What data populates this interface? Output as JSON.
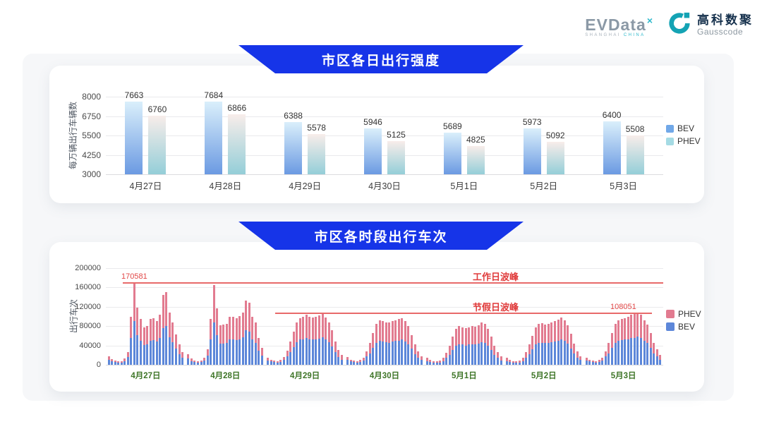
{
  "header": {
    "evdata": {
      "text": "EVData",
      "superscript": "×",
      "sub_left": "SHANGHAI",
      "sub_right": "CHINA"
    },
    "gausscode": {
      "cn": "高科数聚",
      "en": "Gausscode",
      "icon_color": "#14a3b4"
    }
  },
  "section1": {
    "title": "市区各日出行强度",
    "banner_color": "#1634e8",
    "legend": [
      {
        "label": "BEV",
        "color": "#71a8e8"
      },
      {
        "label": "PHEV",
        "color": "#a5dbe4"
      }
    ]
  },
  "section2": {
    "title": "市区各时段出行车次",
    "banner_color": "#1634e8",
    "legend": [
      {
        "label": "PHEV",
        "color": "#e27b90"
      },
      {
        "label": "BEV",
        "color": "#5d87d9"
      }
    ]
  },
  "chart_data": [
    {
      "type": "bar",
      "title": "市区各日出行强度",
      "ylabel": "每万辆出行车辆数",
      "xlabel": "",
      "categories": [
        "4月27日",
        "4月28日",
        "4月29日",
        "4月30日",
        "5月1日",
        "5月2日",
        "5月3日"
      ],
      "series": [
        {
          "name": "BEV",
          "values": [
            7663,
            7684,
            6388,
            5946,
            5689,
            5973,
            6400
          ],
          "gradient": [
            "#daeffb",
            "#6b9ae2"
          ]
        },
        {
          "name": "PHEV",
          "values": [
            6760,
            6866,
            5578,
            5125,
            4825,
            5092,
            5508
          ],
          "gradient": [
            "#f8edea",
            "#94ced8"
          ]
        }
      ],
      "yticks": [
        3000,
        4250,
        5500,
        6750,
        8000
      ],
      "ylim": [
        3000,
        8000
      ],
      "grid": true,
      "legend_position": "right"
    },
    {
      "type": "bar",
      "stacked": true,
      "title": "市区各时段出行车次",
      "ylabel": "出行车次",
      "xlabel": "",
      "categories": [
        "4月27日",
        "4月28日",
        "4月29日",
        "4月30日",
        "5月1日",
        "5月2日",
        "5月3日"
      ],
      "hours_per_day": 24,
      "yticks": [
        0,
        40000,
        80000,
        120000,
        160000,
        200000
      ],
      "ylim": [
        0,
        200000
      ],
      "grid": true,
      "legend_position": "right",
      "series": [
        {
          "name": "BEV",
          "color": "#5d87d9",
          "values_by_day": [
            [
              11000,
              8000,
              6000,
              5000,
              5000,
              8000,
              16000,
              55000,
              90000,
              62000,
              50000,
              41000,
              42000,
              50000,
              51000,
              48000,
              55000,
              76000,
              80000,
              57000,
              47000,
              33000,
              22000,
              14000
            ],
            [
              13000,
              8000,
              6000,
              5000,
              6000,
              9000,
              19000,
              52000,
              88000,
              62000,
              44000,
              44000,
              45000,
              52000,
              53000,
              51000,
              53000,
              57000,
              71000,
              68000,
              53000,
              46000,
              29000,
              19000
            ],
            [
              9000,
              7000,
              6000,
              5000,
              6000,
              10000,
              18000,
              26000,
              36000,
              47000,
              52000,
              53000,
              55000,
              53000,
              52000,
              53000,
              54000,
              57000,
              52000,
              47000,
              38000,
              26000,
              16000,
              11000
            ],
            [
              10000,
              7000,
              6000,
              5000,
              6000,
              9000,
              17000,
              24000,
              35000,
              45000,
              49000,
              48000,
              47000,
              46000,
              48000,
              49000,
              50000,
              52000,
              48000,
              42000,
              33000,
              22000,
              15000,
              10000
            ],
            [
              8000,
              6000,
              5000,
              4000,
              5000,
              8000,
              15000,
              21000,
              31000,
              40000,
              43000,
              42000,
              40000,
              42000,
              43000,
              42000,
              44000,
              47000,
              45000,
              40000,
              31000,
              21000,
              14000,
              9000
            ],
            [
              8000,
              6000,
              5000,
              4000,
              5000,
              8000,
              15000,
              22000,
              32000,
              42000,
              45000,
              46000,
              45000,
              45000,
              47000,
              48000,
              50000,
              52000,
              49000,
              44000,
              34000,
              23000,
              15000,
              10000
            ],
            [
              9000,
              7000,
              6000,
              5000,
              6000,
              9000,
              17000,
              24000,
              35000,
              45000,
              49000,
              51000,
              52000,
              53000,
              55000,
              56000,
              58000,
              55000,
              49000,
              45000,
              35000,
              24000,
              17000,
              11000
            ]
          ]
        },
        {
          "name": "PHEV",
          "color": "#e27b90",
          "values_by_day": [
            [
              7000,
              4000,
              3000,
              2000,
              3000,
              5000,
              11000,
              45000,
              80581,
              57000,
              45000,
              36000,
              38000,
              45000,
              45000,
              42000,
              48000,
              69000,
              70000,
              51000,
              41000,
              30000,
              20000,
              13000
            ],
            [
              9000,
              5000,
              3000,
              3000,
              3000,
              6000,
              13000,
              43000,
              77000,
              55000,
              38000,
              39000,
              40000,
              47000,
              47000,
              46000,
              48000,
              51000,
              62000,
              60000,
              47000,
              41000,
              26000,
              16000
            ],
            [
              6000,
              4000,
              3000,
              3000,
              4000,
              6000,
              12000,
              22000,
              32000,
              41000,
              45000,
              47000,
              48000,
              47000,
              46000,
              47000,
              48000,
              50000,
              46000,
              41000,
              34000,
              22000,
              14000,
              9000
            ],
            [
              6000,
              4000,
              3000,
              3000,
              4000,
              6000,
              11000,
              21000,
              30000,
              40000,
              43000,
              42000,
              41000,
              41000,
              42000,
              43000,
              45000,
              45000,
              42000,
              38000,
              29000,
              20000,
              13000,
              8000
            ],
            [
              6000,
              4000,
              3000,
              3000,
              4000,
              6000,
              10000,
              19000,
              27000,
              35000,
              37000,
              36000,
              36000,
              36000,
              37000,
              37000,
              38000,
              41000,
              40000,
              35000,
              27000,
              19000,
              12000,
              8000
            ],
            [
              6000,
              4000,
              3000,
              3000,
              4000,
              6000,
              11000,
              20000,
              28000,
              36000,
              40000,
              40000,
              39000,
              40000,
              41000,
              42000,
              43000,
              46000,
              43000,
              38000,
              30000,
              21000,
              13000,
              8000
            ],
            [
              6000,
              4000,
              3000,
              3000,
              4000,
              6000,
              11000,
              21000,
              30000,
              40000,
              43000,
              44000,
              45000,
              47000,
              48000,
              49000,
              50051,
              48000,
              43000,
              39000,
              30000,
              21000,
              15000,
              9000
            ]
          ]
        }
      ],
      "annotations": [
        {
          "label": "工作日波峰",
          "value": 170581,
          "value_label": "170581",
          "color": "#e03b3b",
          "x0": 0.03,
          "x1": 1.0,
          "label_x": 0.658,
          "value_x": 0.028
        },
        {
          "label": "节假日波峰",
          "value": 108051,
          "value_label": "108051",
          "color": "#e03b3b",
          "x0": 0.304,
          "x1": 0.98,
          "label_x": 0.658,
          "value_x": 0.905
        }
      ]
    }
  ]
}
